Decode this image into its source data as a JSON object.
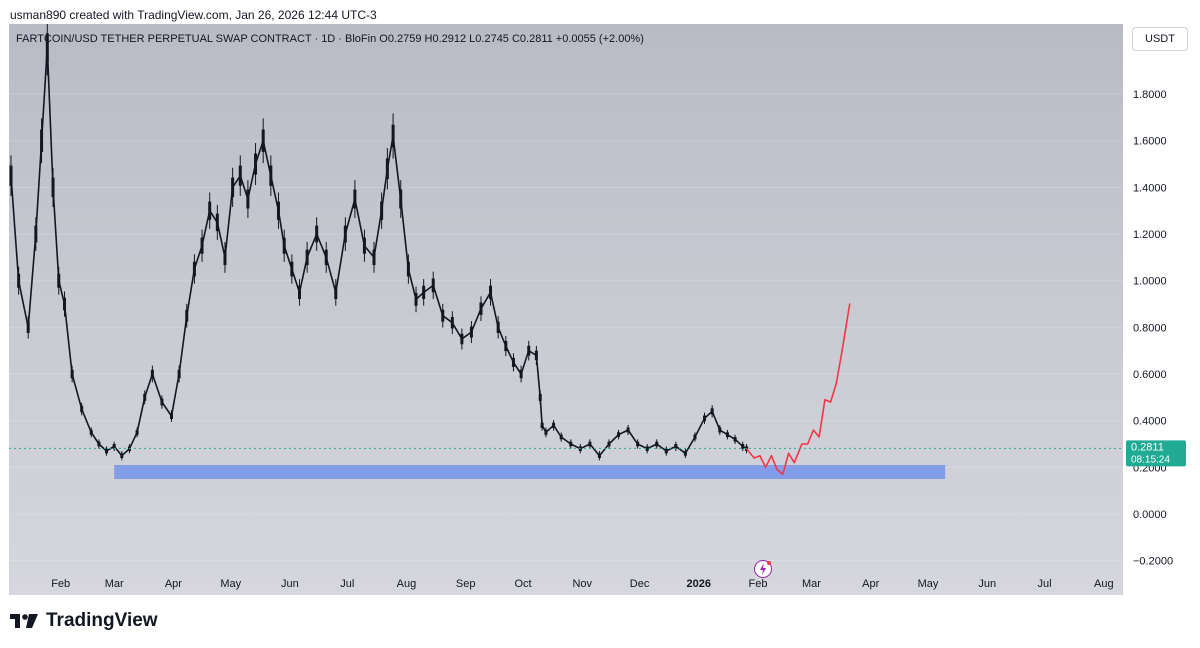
{
  "header": {
    "meta_text": "usman890 created with TradingView.com, Jan 26, 2026 12:44 UTC-3"
  },
  "symbol_bar": {
    "text": "FARTCOIN/USD TETHER PERPETUAL SWAP CONTRACT · 1D · BloFin  O0.2759  H0.2912  L0.2745  C0.2811  +0.0055 (+2.00%)"
  },
  "currency_button": "USDT",
  "brand": {
    "name": "TradingView"
  },
  "colors": {
    "candles": "#131722",
    "projection": "#f23645",
    "support_zone": "#7b97ea",
    "last_price": "#22ab94",
    "axis_text": "#131722"
  },
  "icons": [
    "tradingview-logo-icon",
    "lightning-icon"
  ],
  "chart_data": {
    "type": "line",
    "title": "",
    "xlabel": "",
    "ylabel": "",
    "ylim": [
      -0.3,
      2.0
    ],
    "y_ticks": [
      "1.8000",
      "1.6000",
      "1.4000",
      "1.2000",
      "1.0000",
      "0.8000",
      "0.6000",
      "0.4000",
      "0.2000",
      "0.0000",
      "−0.2000"
    ],
    "y_tick_values": [
      1.8,
      1.6,
      1.4,
      1.2,
      1.0,
      0.8,
      0.6,
      0.4,
      0.2,
      0.0,
      -0.2
    ],
    "x_ticks": [
      "Feb",
      "Mar",
      "Apr",
      "May",
      "Jun",
      "Jul",
      "Aug",
      "Sep",
      "Oct",
      "Nov",
      "Dec",
      "2026",
      "Feb",
      "Mar",
      "Apr",
      "May",
      "Jun",
      "Jul",
      "Aug"
    ],
    "x_tick_dates": [
      "2025-02-01",
      "2025-03-01",
      "2025-04-01",
      "2025-05-01",
      "2025-06-01",
      "2025-07-01",
      "2025-08-01",
      "2025-09-01",
      "2025-10-01",
      "2025-11-01",
      "2025-12-01",
      "2026-01-01",
      "2026-02-01",
      "2026-03-01",
      "2026-04-01",
      "2026-05-01",
      "2026-06-01",
      "2026-07-01",
      "2026-08-01"
    ],
    "x_range": [
      "2025-01-06",
      "2026-08-10"
    ],
    "last_price": {
      "value": 0.2811,
      "label": "0.2811",
      "countdown": "08:15:24"
    },
    "series": [
      {
        "style": "price",
        "x": [
          "2025-01-06",
          "2025-01-10",
          "2025-01-15",
          "2025-01-19",
          "2025-01-22",
          "2025-01-25",
          "2025-01-28",
          "2025-01-31",
          "2025-02-03",
          "2025-02-07",
          "2025-02-12",
          "2025-02-17",
          "2025-02-21",
          "2025-02-25",
          "2025-03-01",
          "2025-03-05",
          "2025-03-09",
          "2025-03-13",
          "2025-03-17",
          "2025-03-21",
          "2025-03-26",
          "2025-03-31",
          "2025-04-04",
          "2025-04-08",
          "2025-04-12",
          "2025-04-16",
          "2025-04-20",
          "2025-04-24",
          "2025-04-28",
          "2025-05-02",
          "2025-05-06",
          "2025-05-10",
          "2025-05-14",
          "2025-05-18",
          "2025-05-22",
          "2025-05-26",
          "2025-05-29",
          "2025-06-02",
          "2025-06-06",
          "2025-06-10",
          "2025-06-15",
          "2025-06-20",
          "2025-06-25",
          "2025-06-30",
          "2025-07-05",
          "2025-07-10",
          "2025-07-15",
          "2025-07-19",
          "2025-07-22",
          "2025-07-25",
          "2025-07-29",
          "2025-08-02",
          "2025-08-06",
          "2025-08-10",
          "2025-08-15",
          "2025-08-20",
          "2025-08-25",
          "2025-08-30",
          "2025-09-04",
          "2025-09-09",
          "2025-09-14",
          "2025-09-18",
          "2025-09-22",
          "2025-09-26",
          "2025-09-30",
          "2025-10-04",
          "2025-10-08",
          "2025-10-10",
          "2025-10-11",
          "2025-10-13",
          "2025-10-17",
          "2025-10-21",
          "2025-10-26",
          "2025-10-31",
          "2025-11-05",
          "2025-11-10",
          "2025-11-15",
          "2025-11-20",
          "2025-11-25",
          "2025-11-30",
          "2025-12-05",
          "2025-12-10",
          "2025-12-15",
          "2025-12-20",
          "2025-12-25",
          "2025-12-30",
          "2026-01-04",
          "2026-01-08",
          "2026-01-12",
          "2026-01-16",
          "2026-01-20",
          "2026-01-24",
          "2026-01-26"
        ],
        "y": [
          1.45,
          1.0,
          0.8,
          1.2,
          1.6,
          2.0,
          1.4,
          1.0,
          0.9,
          0.6,
          0.45,
          0.35,
          0.3,
          0.27,
          0.29,
          0.25,
          0.28,
          0.35,
          0.5,
          0.6,
          0.48,
          0.42,
          0.6,
          0.85,
          1.05,
          1.15,
          1.3,
          1.25,
          1.1,
          1.4,
          1.45,
          1.35,
          1.5,
          1.6,
          1.45,
          1.3,
          1.15,
          1.05,
          0.95,
          1.1,
          1.2,
          1.1,
          0.95,
          1.2,
          1.35,
          1.15,
          1.1,
          1.3,
          1.48,
          1.62,
          1.35,
          1.05,
          0.92,
          0.95,
          0.98,
          0.85,
          0.82,
          0.75,
          0.78,
          0.88,
          0.95,
          0.8,
          0.72,
          0.65,
          0.6,
          0.7,
          0.68,
          0.5,
          0.38,
          0.35,
          0.38,
          0.33,
          0.3,
          0.28,
          0.3,
          0.25,
          0.3,
          0.34,
          0.36,
          0.3,
          0.28,
          0.3,
          0.27,
          0.29,
          0.26,
          0.33,
          0.41,
          0.44,
          0.36,
          0.34,
          0.32,
          0.29,
          0.28
        ]
      },
      {
        "style": "projection",
        "x": [
          "2026-01-26",
          "2026-01-30",
          "2026-02-02",
          "2026-02-05",
          "2026-02-08",
          "2026-02-11",
          "2026-02-14",
          "2026-02-17",
          "2026-02-20",
          "2026-02-24",
          "2026-02-27",
          "2026-03-02",
          "2026-03-05",
          "2026-03-08",
          "2026-03-11",
          "2026-03-14",
          "2026-03-17",
          "2026-03-19",
          "2026-03-21"
        ],
        "y": [
          0.28,
          0.24,
          0.25,
          0.2,
          0.25,
          0.19,
          0.17,
          0.26,
          0.22,
          0.3,
          0.3,
          0.36,
          0.33,
          0.49,
          0.48,
          0.56,
          0.7,
          0.8,
          0.9
        ]
      }
    ],
    "zones": [
      {
        "label": "",
        "from": "2025-03-01",
        "to": "2026-05-10",
        "y_low": 0.15,
        "y_high": 0.21
      }
    ],
    "grid": true,
    "legend": "none"
  }
}
